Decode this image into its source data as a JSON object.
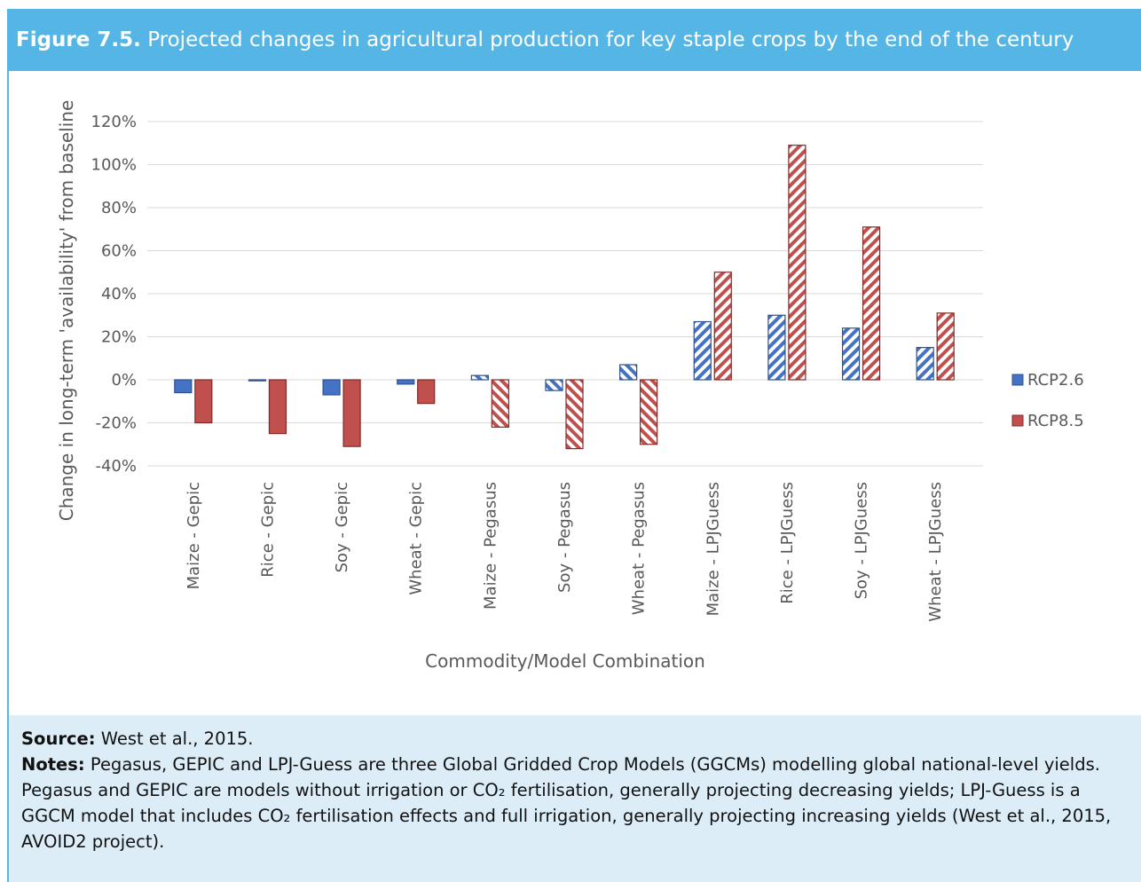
{
  "header": {
    "label": "Figure 7.5.",
    "title": "Projected changes in agricultural production for key staple crops by the end of the century"
  },
  "chart_data": {
    "type": "bar",
    "y_label": "Change in long-term 'availability' from baseline",
    "x_label": "Commodity/Model Combination",
    "categories": [
      "Maize - Gepic",
      "Rice - Gepic",
      "Soy - Gepic",
      "Wheat - Gepic",
      "Maize - Pegasus",
      "Soy - Pegasus",
      "Wheat - Pegasus",
      "Maize - LPJGuess",
      "Rice - LPJGuess",
      "Soy - LPJGuess",
      "Wheat - LPJGuess"
    ],
    "hatch": [
      "solid",
      "solid",
      "solid",
      "solid",
      "backslash",
      "backslash",
      "backslash",
      "slash",
      "slash",
      "slash",
      "slash"
    ],
    "series": [
      {
        "name": "RCP2.6",
        "color": "#4472c4",
        "values": [
          -6,
          -0.5,
          -7,
          -2,
          2,
          -5,
          7,
          27,
          30,
          24,
          15
        ]
      },
      {
        "name": "RCP8.5",
        "color": "#c0504d",
        "values": [
          -20,
          -25,
          -31,
          -11,
          -22,
          -32,
          -30,
          50,
          109,
          71,
          31
        ]
      }
    ],
    "ylim": [
      -40,
      120
    ],
    "yticks": [
      {
        "value": -40,
        "label": "-40%"
      },
      {
        "value": -20,
        "label": "-20%"
      },
      {
        "value": 0,
        "label": "0%"
      },
      {
        "value": 20,
        "label": "20%"
      },
      {
        "value": 40,
        "label": "40%"
      },
      {
        "value": 60,
        "label": "60%"
      },
      {
        "value": 80,
        "label": "80%"
      },
      {
        "value": 100,
        "label": "100%"
      },
      {
        "value": 120,
        "label": "120%"
      }
    ],
    "grid": true,
    "legend": "right"
  },
  "source": {
    "label": "Source:",
    "text": "West et al., 2015."
  },
  "notes": {
    "label": "Notes:",
    "text": "Pegasus, GEPIC and LPJ-Guess are three Global Gridded Crop Models (GGCMs) modelling global national-level yields. Pegasus and GEPIC are models without irrigation or CO₂ fertilisation, generally projecting decreasing yields; LPJ-Guess is a GGCM model that includes CO₂ fertilisation effects and full irrigation, generally projecting increasing yields (West et al., 2015, AVOID2 project)."
  }
}
